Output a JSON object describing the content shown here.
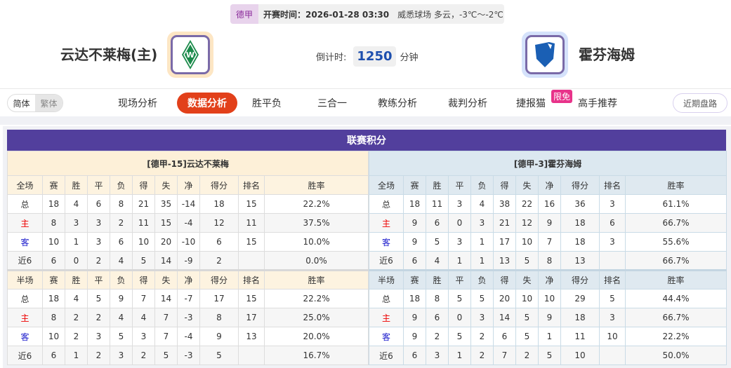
{
  "match": {
    "league": "德甲",
    "kickoff": "开赛时间：2026-01-28 03:30",
    "venue_weather": "威悉球场  多云，-3℃～-2℃"
  },
  "home": {
    "name": "云达不莱梅(主)",
    "logo_color": "#1a8a4a"
  },
  "away": {
    "name": "霍芬海姆",
    "logo_color": "#1a5fb4"
  },
  "countdown": {
    "label": "倒计时:",
    "value": "1250",
    "unit": "分钟"
  },
  "lang": {
    "simplified": "简体",
    "traditional": "繁体"
  },
  "nav": [
    {
      "label": "现场分析"
    },
    {
      "label": "数据分析",
      "active": true
    },
    {
      "label": "胜平负"
    },
    {
      "label": "三合一"
    },
    {
      "label": "教练分析"
    },
    {
      "label": "裁判分析"
    },
    {
      "label": "捷报猫",
      "badge": "限免"
    },
    {
      "label": "高手推荐"
    }
  ],
  "recent_button": "近期盘路",
  "standings": {
    "title": "联赛积分",
    "columns": [
      "赛",
      "胜",
      "平",
      "负",
      "得",
      "失",
      "净",
      "得分",
      "排名",
      "胜率"
    ],
    "full_label": "全场",
    "half_label": "半场",
    "tables": [
      {
        "caption": "[德甲-15]云达不莱梅",
        "full": [
          [
            "总",
            "18",
            "4",
            "6",
            "8",
            "21",
            "35",
            "-14",
            "18",
            "15",
            "22.2%"
          ],
          [
            "主",
            "8",
            "3",
            "3",
            "2",
            "11",
            "15",
            "-4",
            "12",
            "11",
            "37.5%"
          ],
          [
            "客",
            "10",
            "1",
            "3",
            "6",
            "10",
            "20",
            "-10",
            "6",
            "15",
            "10.0%"
          ],
          [
            "近6",
            "6",
            "0",
            "2",
            "4",
            "5",
            "14",
            "-9",
            "2",
            "",
            "0.0%"
          ]
        ],
        "half": [
          [
            "总",
            "18",
            "4",
            "5",
            "9",
            "7",
            "14",
            "-7",
            "17",
            "15",
            "22.2%"
          ],
          [
            "主",
            "8",
            "2",
            "2",
            "4",
            "4",
            "7",
            "-3",
            "8",
            "17",
            "25.0%"
          ],
          [
            "客",
            "10",
            "2",
            "3",
            "5",
            "3",
            "7",
            "-4",
            "9",
            "13",
            "20.0%"
          ],
          [
            "近6",
            "6",
            "1",
            "2",
            "3",
            "2",
            "5",
            "-3",
            "5",
            "",
            "16.7%"
          ]
        ]
      },
      {
        "caption": "[德甲-3]霍芬海姆",
        "full": [
          [
            "总",
            "18",
            "11",
            "3",
            "4",
            "38",
            "22",
            "16",
            "36",
            "3",
            "61.1%"
          ],
          [
            "主",
            "9",
            "6",
            "0",
            "3",
            "21",
            "12",
            "9",
            "18",
            "6",
            "66.7%"
          ],
          [
            "客",
            "9",
            "5",
            "3",
            "1",
            "17",
            "10",
            "7",
            "18",
            "3",
            "55.6%"
          ],
          [
            "近6",
            "6",
            "4",
            "1",
            "1",
            "13",
            "5",
            "8",
            "13",
            "",
            "66.7%"
          ]
        ],
        "half": [
          [
            "总",
            "18",
            "8",
            "5",
            "5",
            "20",
            "10",
            "10",
            "29",
            "5",
            "44.4%"
          ],
          [
            "主",
            "9",
            "6",
            "0",
            "3",
            "14",
            "5",
            "9",
            "18",
            "3",
            "66.7%"
          ],
          [
            "客",
            "9",
            "2",
            "5",
            "2",
            "6",
            "5",
            "1",
            "11",
            "10",
            "22.2%"
          ],
          [
            "近6",
            "6",
            "3",
            "1",
            "2",
            "7",
            "2",
            "5",
            "10",
            "",
            "50.0%"
          ]
        ]
      }
    ]
  }
}
